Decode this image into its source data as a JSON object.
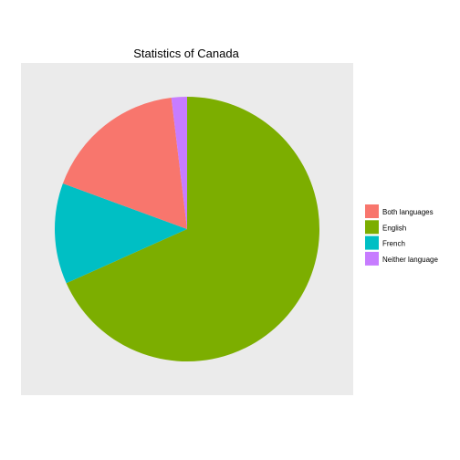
{
  "chart_data": {
    "type": "pie",
    "title": "Statistics of Canada",
    "start": "12 o'clock",
    "direction": "clockwise",
    "slice_order": [
      "English",
      "French",
      "Both languages",
      "Neither language"
    ],
    "legend_position": "right",
    "panel_background": "#ebebeb",
    "series": [
      {
        "name": "Both languages",
        "value": 17.5,
        "color": "#f8766d"
      },
      {
        "name": "English",
        "value": 68.3,
        "color": "#7cae00"
      },
      {
        "name": "French",
        "value": 12.3,
        "color": "#00bfc4"
      },
      {
        "name": "Neither language",
        "value": 1.9,
        "color": "#c77cff"
      }
    ]
  }
}
